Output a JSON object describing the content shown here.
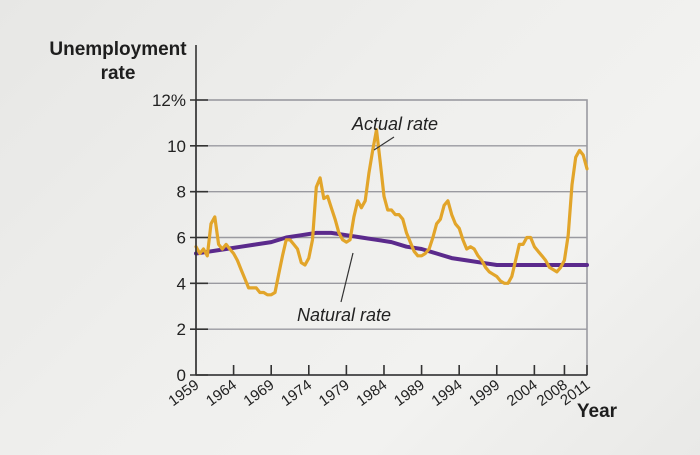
{
  "chart_data": {
    "type": "line",
    "ylabel_line1": "Unemployment",
    "ylabel_line2": "rate",
    "xlabel": "Year",
    "ylim": [
      0,
      12
    ],
    "y_ticks": [
      "0",
      "2",
      "4",
      "6",
      "8",
      "10",
      "12%"
    ],
    "x_ticks": [
      "1959",
      "1964",
      "1969",
      "1974",
      "1979",
      "1984",
      "1989",
      "1994",
      "1999",
      "2004",
      "2008",
      "2011"
    ],
    "grid": "horizontal",
    "colors": {
      "actual": "#e2a52a",
      "natural": "#5b2a8c"
    },
    "annotations": [
      {
        "text": "Actual rate",
        "series": "actual"
      },
      {
        "text": "Natural rate",
        "series": "natural"
      }
    ],
    "series": [
      {
        "name": "Actual rate",
        "key": "actual",
        "points": [
          [
            1959,
            5.6
          ],
          [
            1959.5,
            5.3
          ],
          [
            1960,
            5.5
          ],
          [
            1960.5,
            5.2
          ],
          [
            1961,
            6.6
          ],
          [
            1961.5,
            6.9
          ],
          [
            1962,
            5.7
          ],
          [
            1962.5,
            5.5
          ],
          [
            1963,
            5.7
          ],
          [
            1963.5,
            5.5
          ],
          [
            1964,
            5.3
          ],
          [
            1964.5,
            5.0
          ],
          [
            1965,
            4.6
          ],
          [
            1965.5,
            4.2
          ],
          [
            1966,
            3.8
          ],
          [
            1966.5,
            3.8
          ],
          [
            1967,
            3.8
          ],
          [
            1967.5,
            3.6
          ],
          [
            1968,
            3.6
          ],
          [
            1968.5,
            3.5
          ],
          [
            1969,
            3.5
          ],
          [
            1969.5,
            3.6
          ],
          [
            1970,
            4.4
          ],
          [
            1970.5,
            5.2
          ],
          [
            1971,
            5.9
          ],
          [
            1971.5,
            5.9
          ],
          [
            1972,
            5.7
          ],
          [
            1972.5,
            5.5
          ],
          [
            1973,
            4.9
          ],
          [
            1973.5,
            4.8
          ],
          [
            1974,
            5.1
          ],
          [
            1974.5,
            5.9
          ],
          [
            1975,
            8.2
          ],
          [
            1975.5,
            8.6
          ],
          [
            1976,
            7.7
          ],
          [
            1976.5,
            7.8
          ],
          [
            1977,
            7.3
          ],
          [
            1977.5,
            6.8
          ],
          [
            1978,
            6.2
          ],
          [
            1978.5,
            5.9
          ],
          [
            1979,
            5.8
          ],
          [
            1979.5,
            5.9
          ],
          [
            1980,
            6.9
          ],
          [
            1980.5,
            7.6
          ],
          [
            1981,
            7.3
          ],
          [
            1981.5,
            7.6
          ],
          [
            1982,
            8.8
          ],
          [
            1982.5,
            9.8
          ],
          [
            1983,
            10.7
          ],
          [
            1983.5,
            9.3
          ],
          [
            1984,
            7.8
          ],
          [
            1984.5,
            7.2
          ],
          [
            1985,
            7.2
          ],
          [
            1985.5,
            7.0
          ],
          [
            1986,
            7.0
          ],
          [
            1986.5,
            6.8
          ],
          [
            1987,
            6.2
          ],
          [
            1987.5,
            5.8
          ],
          [
            1988,
            5.4
          ],
          [
            1988.5,
            5.2
          ],
          [
            1989,
            5.2
          ],
          [
            1989.5,
            5.3
          ],
          [
            1990,
            5.5
          ],
          [
            1990.5,
            6.0
          ],
          [
            1991,
            6.6
          ],
          [
            1991.5,
            6.8
          ],
          [
            1992,
            7.4
          ],
          [
            1992.5,
            7.6
          ],
          [
            1993,
            7.0
          ],
          [
            1993.5,
            6.6
          ],
          [
            1994,
            6.4
          ],
          [
            1994.5,
            5.9
          ],
          [
            1995,
            5.5
          ],
          [
            1995.5,
            5.6
          ],
          [
            1996,
            5.5
          ],
          [
            1996.5,
            5.2
          ],
          [
            1997,
            5.0
          ],
          [
            1997.5,
            4.7
          ],
          [
            1998,
            4.5
          ],
          [
            1998.5,
            4.4
          ],
          [
            1999,
            4.3
          ],
          [
            1999.5,
            4.1
          ],
          [
            2000,
            4.0
          ],
          [
            2000.5,
            4.0
          ],
          [
            2001,
            4.3
          ],
          [
            2001.5,
            5.0
          ],
          [
            2002,
            5.7
          ],
          [
            2002.5,
            5.7
          ],
          [
            2003,
            6.0
          ],
          [
            2003.5,
            6.0
          ],
          [
            2004,
            5.6
          ],
          [
            2004.5,
            5.4
          ],
          [
            2005,
            5.2
          ],
          [
            2005.5,
            5.0
          ],
          [
            2006,
            4.7
          ],
          [
            2006.5,
            4.6
          ],
          [
            2007,
            4.5
          ],
          [
            2007.5,
            4.7
          ],
          [
            2008,
            5.0
          ],
          [
            2008.5,
            6.1
          ],
          [
            2009,
            8.3
          ],
          [
            2009.5,
            9.5
          ],
          [
            2010,
            9.8
          ],
          [
            2010.5,
            9.6
          ],
          [
            2011,
            9.0
          ]
        ]
      },
      {
        "name": "Natural rate",
        "key": "natural",
        "points": [
          [
            1959,
            5.3
          ],
          [
            1961,
            5.4
          ],
          [
            1963,
            5.5
          ],
          [
            1965,
            5.6
          ],
          [
            1967,
            5.7
          ],
          [
            1969,
            5.8
          ],
          [
            1971,
            6.0
          ],
          [
            1973,
            6.1
          ],
          [
            1975,
            6.2
          ],
          [
            1977,
            6.2
          ],
          [
            1979,
            6.1
          ],
          [
            1981,
            6.0
          ],
          [
            1983,
            5.9
          ],
          [
            1985,
            5.8
          ],
          [
            1987,
            5.6
          ],
          [
            1989,
            5.5
          ],
          [
            1991,
            5.3
          ],
          [
            1993,
            5.1
          ],
          [
            1995,
            5.0
          ],
          [
            1997,
            4.9
          ],
          [
            1999,
            4.8
          ],
          [
            2001,
            4.8
          ],
          [
            2003,
            4.8
          ],
          [
            2005,
            4.8
          ],
          [
            2007,
            4.8
          ],
          [
            2009,
            4.8
          ],
          [
            2011,
            4.8
          ]
        ]
      }
    ]
  }
}
